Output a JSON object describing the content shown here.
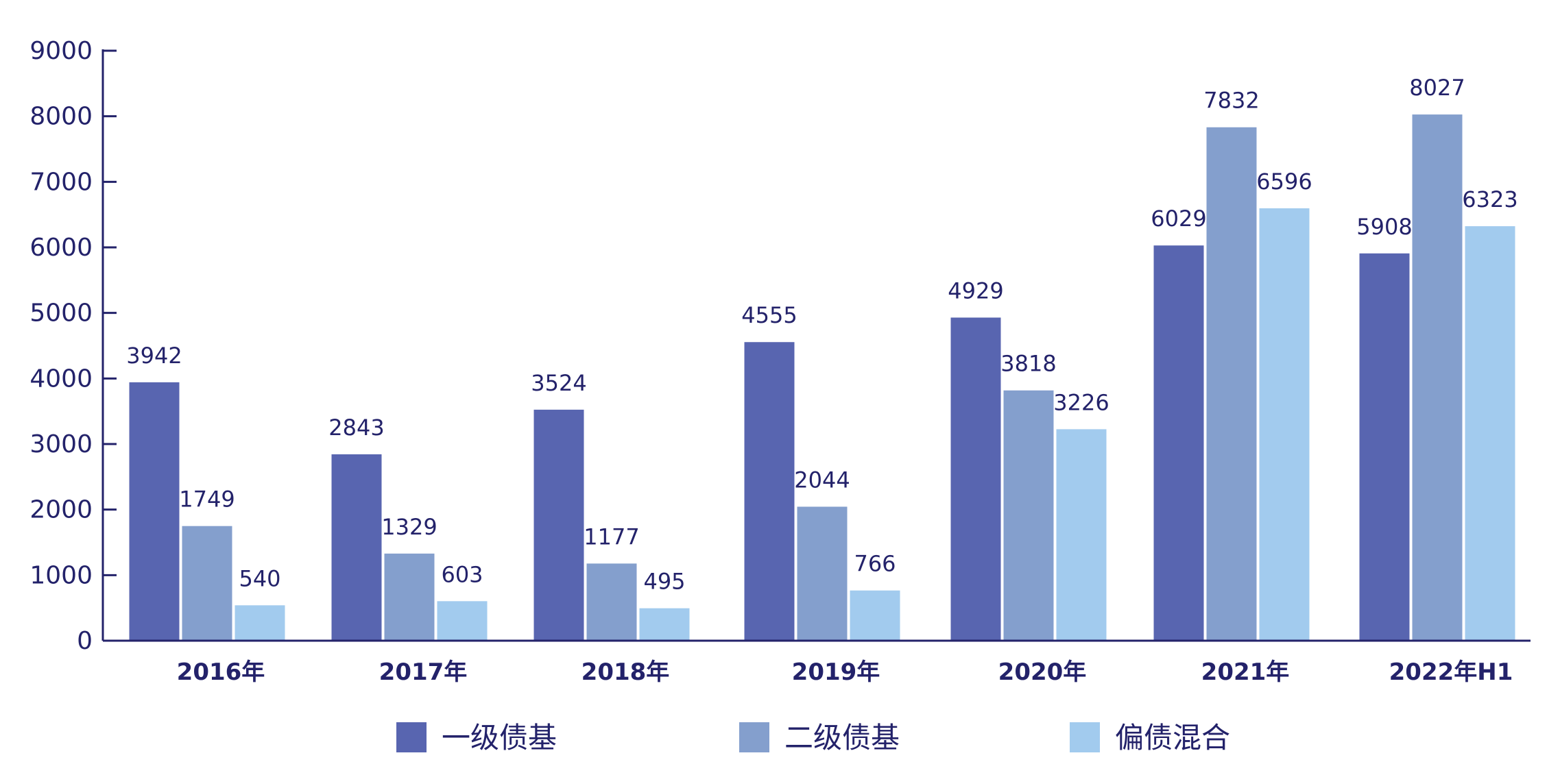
{
  "chart_data": {
    "type": "bar",
    "title": "",
    "xlabel": "",
    "ylabel": "",
    "ylim": [
      0,
      9000
    ],
    "yticks": [
      0,
      1000,
      2000,
      3000,
      4000,
      5000,
      6000,
      7000,
      8000,
      9000
    ],
    "grid": false,
    "legend_position": "bottom",
    "categories": [
      "2016年",
      "2017年",
      "2018年",
      "2019年",
      "2020年",
      "2021年",
      "2022年H1"
    ],
    "series": [
      {
        "name": "一级债基",
        "color": "#5865b0",
        "values": [
          3942,
          2843,
          3524,
          4555,
          4929,
          6029,
          5908
        ]
      },
      {
        "name": "二级债基",
        "color": "#849fcd",
        "values": [
          1749,
          1329,
          1177,
          2044,
          3818,
          7832,
          8027
        ]
      },
      {
        "name": "偏债混合",
        "color": "#a2cbee",
        "values": [
          540,
          603,
          495,
          766,
          3226,
          6596,
          6323
        ]
      }
    ],
    "axis_color": "#23226a",
    "text_color": "#23226a"
  }
}
